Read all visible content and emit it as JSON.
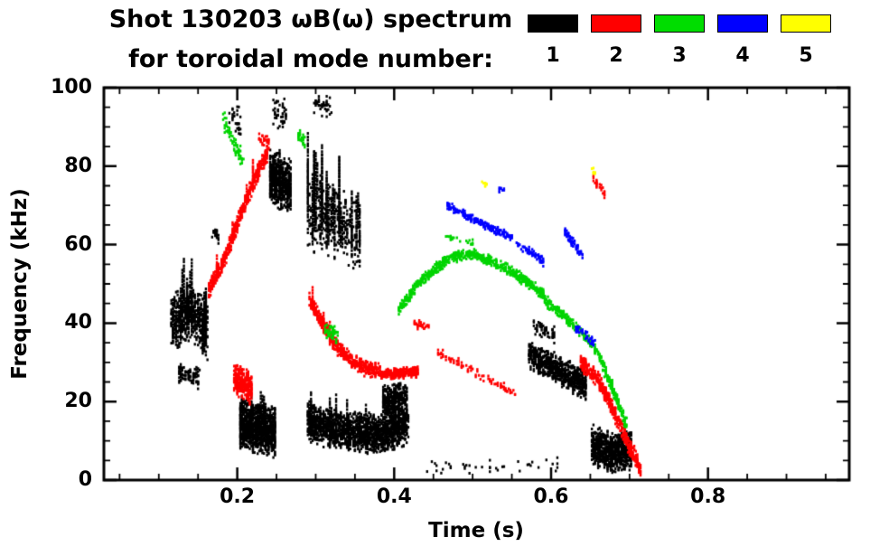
{
  "title": {
    "line1": "Shot 130203 ωB(ω) spectrum",
    "line2": "for toroidal mode number:"
  },
  "legend": {
    "items": [
      {
        "label": "1",
        "color": "#000000"
      },
      {
        "label": "2",
        "color": "#ff0000"
      },
      {
        "label": "3",
        "color": "#00dd00"
      },
      {
        "label": "4",
        "color": "#0000ff"
      },
      {
        "label": "5",
        "color": "#ffff00"
      }
    ]
  },
  "chart_data": {
    "type": "scatter",
    "title": "Shot 130203 ωB(ω) spectrum for toroidal mode number: 1 2 3 4 5",
    "xlabel": "Time (s)",
    "ylabel": "Frequency (kHz)",
    "xlim": [
      0.03,
      0.98
    ],
    "ylim": [
      0,
      100
    ],
    "xticks": [
      0.2,
      0.4,
      0.6,
      0.8
    ],
    "xtick_labels": [
      "0.2",
      "0.4",
      "0.6",
      "0.8"
    ],
    "x_minor_step": 0.05,
    "yticks": [
      0,
      20,
      40,
      60,
      80,
      100
    ],
    "ytick_labels": [
      "0",
      "20",
      "40",
      "60",
      "80",
      "100"
    ],
    "y_minor_step": 5,
    "grid": false,
    "legend_position": "top-right",
    "series": [
      {
        "name": "n=1",
        "mode": 1,
        "color": "#000000",
        "bands": [
          {
            "path": [
              [
                0.116,
                40
              ],
              [
                0.14,
                43
              ],
              [
                0.162,
                38
              ]
            ],
            "width": 16,
            "n": 550,
            "streaks": 20,
            "streak_len": 12
          },
          {
            "path": [
              [
                0.125,
                27
              ],
              [
                0.152,
                26
              ]
            ],
            "width": 6,
            "n": 90
          },
          {
            "path": [
              [
                0.168,
                63
              ],
              [
                0.177,
                62
              ]
            ],
            "width": 4,
            "n": 20
          },
          {
            "path": [
              [
                0.19,
                93
              ],
              [
                0.205,
                91
              ]
            ],
            "width": 8,
            "n": 30
          },
          {
            "path": [
              [
                0.203,
                14
              ],
              [
                0.226,
                13
              ],
              [
                0.249,
                12
              ]
            ],
            "width": 14,
            "n": 950,
            "streaks": 12,
            "streak_len": 9
          },
          {
            "path": [
              [
                0.242,
                77
              ],
              [
                0.268,
                75
              ]
            ],
            "width": 15,
            "n": 500,
            "streaks": 10,
            "streak_len": 9
          },
          {
            "path": [
              [
                0.245,
                94
              ],
              [
                0.263,
                93
              ]
            ],
            "width": 9,
            "n": 45
          },
          {
            "path": [
              [
                0.29,
                68
              ],
              [
                0.325,
                66
              ],
              [
                0.357,
                62
              ]
            ],
            "width": 22,
            "n": 320,
            "streaks": 26,
            "streak_len": 16
          },
          {
            "path": [
              [
                0.298,
                96
              ],
              [
                0.32,
                95
              ]
            ],
            "width": 7,
            "n": 40
          },
          {
            "path": [
              [
                0.289,
                15
              ],
              [
                0.32,
                13
              ],
              [
                0.352,
                12
              ],
              [
                0.385,
                12
              ],
              [
                0.418,
                14
              ]
            ],
            "width": 11,
            "n": 1600,
            "streaks": 22,
            "streak_len": 10
          },
          {
            "path": [
              [
                0.385,
                20
              ],
              [
                0.416,
                21
              ]
            ],
            "width": 9,
            "n": 320
          },
          {
            "path": [
              [
                0.572,
                32
              ],
              [
                0.601,
                29
              ],
              [
                0.645,
                24
              ]
            ],
            "width": 8,
            "n": 700
          },
          {
            "path": [
              [
                0.578,
                39
              ],
              [
                0.605,
                37
              ]
            ],
            "width": 5,
            "n": 60
          },
          {
            "path": [
              [
                0.652,
                9
              ],
              [
                0.676,
                7
              ],
              [
                0.703,
                8
              ]
            ],
            "width": 11,
            "n": 800
          },
          {
            "path": [
              [
                0.44,
                3
              ],
              [
                0.61,
                4
              ]
            ],
            "width": 4,
            "n": 40
          }
        ]
      },
      {
        "name": "n=2",
        "mode": 2,
        "color": "#ff0000",
        "bands": [
          {
            "path": [
              [
                0.163,
                48
              ],
              [
                0.185,
                57
              ],
              [
                0.205,
                68
              ],
              [
                0.225,
                78
              ],
              [
                0.238,
                83
              ]
            ],
            "width": 5,
            "n": 500,
            "streaks": 8,
            "streak_len": 6
          },
          {
            "path": [
              [
                0.228,
                87
              ],
              [
                0.241,
                86
              ]
            ],
            "width": 4,
            "n": 25
          },
          {
            "path": [
              [
                0.196,
                26
              ],
              [
                0.219,
                23
              ]
            ],
            "width": 9,
            "n": 300
          },
          {
            "path": [
              [
                0.292,
                46
              ],
              [
                0.311,
                39
              ],
              [
                0.331,
                33
              ],
              [
                0.356,
                29
              ],
              [
                0.383,
                27.5
              ]
            ],
            "width": 4.5,
            "n": 500,
            "streaks": 5,
            "streak_len": 5
          },
          {
            "path": [
              [
                0.383,
                27
              ],
              [
                0.431,
                27.5
              ]
            ],
            "width": 3,
            "n": 250
          },
          {
            "path": [
              [
                0.425,
                40
              ],
              [
                0.446,
                39
              ]
            ],
            "width": 3,
            "n": 30
          },
          {
            "path": [
              [
                0.452,
                33
              ],
              [
                0.49,
                29
              ],
              [
                0.526,
                25
              ],
              [
                0.556,
                22
              ]
            ],
            "width": 2.5,
            "n": 85
          },
          {
            "path": [
              [
                0.638,
                30
              ],
              [
                0.659,
                26
              ],
              [
                0.679,
                18
              ],
              [
                0.699,
                9
              ],
              [
                0.714,
                3
              ]
            ],
            "width": 5,
            "n": 450
          },
          {
            "path": [
              [
                0.652,
                77
              ],
              [
                0.669,
                73
              ]
            ],
            "width": 3,
            "n": 25
          }
        ]
      },
      {
        "name": "n=3",
        "mode": 3,
        "color": "#00d400",
        "bands": [
          {
            "path": [
              [
                0.182,
                92
              ],
              [
                0.196,
                86
              ],
              [
                0.209,
                80
              ]
            ],
            "width": 6,
            "n": 60
          },
          {
            "path": [
              [
                0.277,
                88
              ],
              [
                0.286,
                86
              ]
            ],
            "width": 5,
            "n": 30
          },
          {
            "path": [
              [
                0.312,
                38
              ],
              [
                0.329,
                37
              ]
            ],
            "width": 5,
            "n": 50
          },
          {
            "path": [
              [
                0.405,
                43
              ],
              [
                0.431,
                50
              ],
              [
                0.456,
                54.5
              ],
              [
                0.476,
                57
              ],
              [
                0.501,
                57.5
              ],
              [
                0.526,
                55.5
              ],
              [
                0.551,
                53
              ],
              [
                0.576,
                49.5
              ],
              [
                0.591,
                47
              ]
            ],
            "width": 3.2,
            "n": 700
          },
          {
            "path": [
              [
                0.591,
                46
              ],
              [
                0.621,
                41
              ],
              [
                0.646,
                36
              ],
              [
                0.664,
                31
              ]
            ],
            "width": 3.2,
            "n": 220
          },
          {
            "path": [
              [
                0.664,
                30
              ],
              [
                0.679,
                23
              ],
              [
                0.696,
                14
              ]
            ],
            "width": 4,
            "n": 150
          },
          {
            "path": [
              [
                0.461,
                62
              ],
              [
                0.501,
                61
              ]
            ],
            "width": 2.5,
            "n": 20
          }
        ]
      },
      {
        "name": "n=4",
        "mode": 4,
        "color": "#0000ff",
        "bands": [
          {
            "path": [
              [
                0.468,
                70
              ],
              [
                0.501,
                66.5
              ],
              [
                0.531,
                63.5
              ],
              [
                0.551,
                62
              ]
            ],
            "width": 2.4,
            "n": 220
          },
          {
            "path": [
              [
                0.556,
                60
              ],
              [
                0.576,
                58
              ],
              [
                0.591,
                55.5
              ]
            ],
            "width": 2.4,
            "n": 60
          },
          {
            "path": [
              [
                0.617,
                63.5
              ],
              [
                0.641,
                57
              ]
            ],
            "width": 2.6,
            "n": 60
          },
          {
            "path": [
              [
                0.631,
                39
              ],
              [
                0.656,
                35
              ]
            ],
            "width": 2.6,
            "n": 40
          },
          {
            "path": [
              [
                0.534,
                74
              ],
              [
                0.541,
                74
              ]
            ],
            "width": 2,
            "n": 8
          }
        ]
      },
      {
        "name": "n=5",
        "mode": 5,
        "color": "#ffff00",
        "bands": [
          {
            "path": [
              [
                0.512,
                76
              ],
              [
                0.519,
                75.5
              ]
            ],
            "width": 2,
            "n": 8
          },
          {
            "path": [
              [
                0.65,
                79
              ],
              [
                0.657,
                78.5
              ]
            ],
            "width": 2,
            "n": 8
          }
        ]
      }
    ]
  }
}
